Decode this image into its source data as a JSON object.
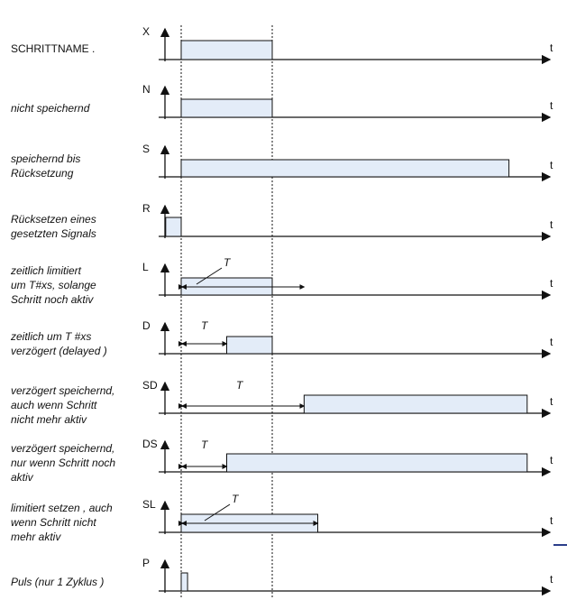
{
  "diagram": {
    "t_axis_label": "t",
    "rows": [
      {
        "id": "X",
        "qualifier": "X",
        "description": "SCHRITTNAME  .",
        "plain": true,
        "pulse": {
          "from": 0,
          "to": 1
        }
      },
      {
        "id": "N",
        "qualifier": "N",
        "description": "nicht speichernd",
        "pulse": {
          "from": 0,
          "to": 1
        }
      },
      {
        "id": "S",
        "qualifier": "S",
        "description": "speichernd bis\nRücksetzung",
        "pulse": {
          "from": 0,
          "to": 3.6
        }
      },
      {
        "id": "R",
        "qualifier": "R",
        "description": "Rücksetzen eines\ngesetzten Signals",
        "pulse": {
          "from": -0.17,
          "to": 0
        }
      },
      {
        "id": "L",
        "qualifier": "L",
        "description": "zeitlich limitiert\num T#xs, solange\nSchritt noch aktiv",
        "pulse": {
          "from": 0,
          "to": 1
        },
        "interval": {
          "from": 0,
          "to": 1.35,
          "label": "T"
        }
      },
      {
        "id": "D",
        "qualifier": "D",
        "description": "zeitlich um T #xs\nverzögert  (delayed )",
        "pulse": {
          "from": 0.5,
          "to": 1
        },
        "interval": {
          "from": 0,
          "to": 0.5,
          "label": "T"
        }
      },
      {
        "id": "SD",
        "qualifier": "SD",
        "description": "verzögert speichernd,\nauch wenn Schritt\nnicht mehr aktiv",
        "pulse": {
          "from": 1.35,
          "to": 3.8
        },
        "interval": {
          "from": 0,
          "to": 1.35,
          "label": "T"
        }
      },
      {
        "id": "DS",
        "qualifier": "DS",
        "description": "verzögert speichernd,\nnur wenn Schritt noch\naktiv",
        "pulse": {
          "from": 0.5,
          "to": 3.8
        },
        "interval": {
          "from": 0,
          "to": 0.5,
          "label": "T"
        }
      },
      {
        "id": "SL",
        "qualifier": "SL",
        "description": "limitiert setzen , auch\nwenn Schritt nicht\nmehr aktiv",
        "pulse": {
          "from": 0,
          "to": 1.5
        },
        "interval": {
          "from": 0,
          "to": 1.5,
          "label": "T"
        }
      },
      {
        "id": "P",
        "qualifier": "P",
        "description": "Puls  (nur 1 Zyklus )",
        "pulse": {
          "from": 0,
          "to": 0.07
        }
      }
    ]
  },
  "colors": {
    "pulse_fill": "#e3ecf8",
    "line": "#111111",
    "accent": "#2b3e8a"
  }
}
